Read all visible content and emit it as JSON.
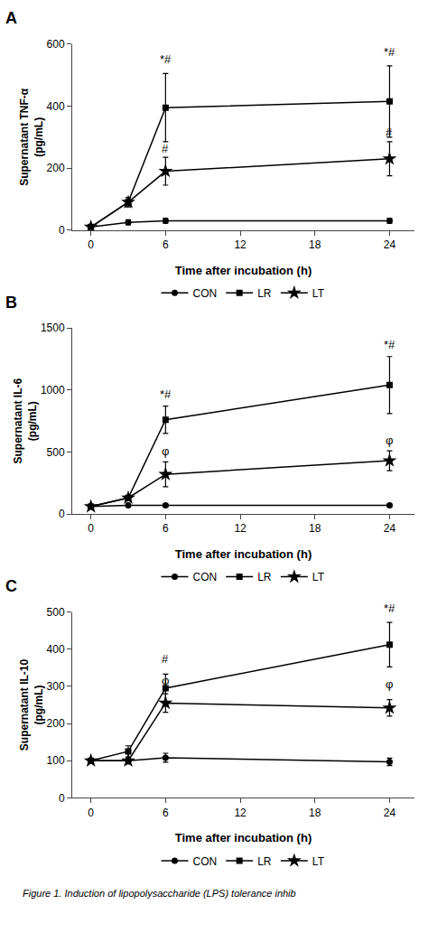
{
  "chart_data": [
    {
      "type": "line",
      "title": "A",
      "x": [
        0,
        3,
        6,
        24
      ],
      "series": [
        {
          "name": "CON",
          "color": "#000000",
          "marker": "circle",
          "values": [
            10,
            25,
            30,
            30
          ],
          "yerr": [
            5,
            8,
            8,
            8
          ]
        },
        {
          "name": "LR",
          "color": "#000000",
          "marker": "square",
          "values": [
            10,
            90,
            395,
            415
          ],
          "yerr": [
            5,
            15,
            110,
            115
          ]
        },
        {
          "name": "LT",
          "color": "#000000",
          "marker": "star",
          "values": [
            10,
            90,
            190,
            230
          ],
          "yerr": [
            5,
            15,
            45,
            55
          ]
        }
      ],
      "xlabel": "Time after incubation (h)",
      "ylabel": "Supernatant TNF-α\n(pg/mL)",
      "xlim": [
        -1.5,
        26
      ],
      "xticks": [
        0,
        6,
        12,
        18,
        24
      ],
      "ylim": [
        0,
        600
      ],
      "yticks": [
        0,
        200,
        400,
        600
      ],
      "annotations": [
        {
          "x": 6,
          "y": 525,
          "text": "*#"
        },
        {
          "x": 6,
          "y": 235,
          "text": "#"
        },
        {
          "x": 24,
          "y": 548,
          "text": "*#"
        },
        {
          "x": 24,
          "y": 287,
          "text": "#"
        }
      ],
      "grid": false,
      "legend": "bottom"
    },
    {
      "type": "line",
      "title": "B",
      "x": [
        0,
        3,
        6,
        24
      ],
      "series": [
        {
          "name": "CON",
          "color": "#000000",
          "marker": "circle",
          "values": [
            60,
            70,
            70,
            70
          ],
          "yerr": [
            10,
            10,
            10,
            10
          ]
        },
        {
          "name": "LR",
          "color": "#000000",
          "marker": "square",
          "values": [
            60,
            130,
            760,
            1040
          ],
          "yerr": [
            10,
            20,
            110,
            230
          ]
        },
        {
          "name": "LT",
          "color": "#000000",
          "marker": "star",
          "values": [
            60,
            130,
            320,
            430
          ],
          "yerr": [
            10,
            20,
            100,
            80
          ]
        }
      ],
      "xlabel": "Time after incubation (h)",
      "ylabel": "Supernatant IL-6\n(pg/mL)",
      "xlim": [
        -1.5,
        26
      ],
      "xticks": [
        0,
        6,
        12,
        18,
        24
      ],
      "ylim": [
        0,
        1500
      ],
      "yticks": [
        0,
        500,
        1000,
        1500
      ],
      "annotations": [
        {
          "x": 6,
          "y": 895,
          "text": "*#"
        },
        {
          "x": 6,
          "y": 438,
          "text": "φ"
        },
        {
          "x": 24,
          "y": 1295,
          "text": "*#"
        },
        {
          "x": 24,
          "y": 528,
          "text": "φ"
        }
      ],
      "grid": false,
      "legend": "bottom"
    },
    {
      "type": "line",
      "title": "C",
      "x": [
        0,
        3,
        6,
        24
      ],
      "series": [
        {
          "name": "CON",
          "color": "#000000",
          "marker": "circle",
          "values": [
            100,
            100,
            108,
            97
          ],
          "yerr": [
            5,
            8,
            12,
            10
          ]
        },
        {
          "name": "LR",
          "color": "#000000",
          "marker": "square",
          "values": [
            100,
            125,
            295,
            412
          ],
          "yerr": [
            5,
            15,
            38,
            60
          ]
        },
        {
          "name": "LT",
          "color": "#000000",
          "marker": "star",
          "values": [
            100,
            100,
            255,
            242
          ],
          "yerr": [
            5,
            8,
            25,
            22
          ]
        }
      ],
      "xlabel": "Time after incubation (h)",
      "ylabel": "Supernatant IL-10\n(pg/mL)",
      "xlim": [
        -1.5,
        26
      ],
      "xticks": [
        0,
        6,
        12,
        18,
        24
      ],
      "ylim": [
        0,
        500
      ],
      "yticks": [
        0,
        100,
        200,
        300,
        400,
        500
      ],
      "annotations": [
        {
          "x": 6,
          "y": 350,
          "text": "#"
        },
        {
          "x": 6,
          "y": 292,
          "text": "φ"
        },
        {
          "x": 24,
          "y": 487,
          "text": "*#"
        },
        {
          "x": 24,
          "y": 282,
          "text": "φ"
        }
      ],
      "grid": false,
      "legend": "bottom"
    }
  ],
  "caption": "Figure 1. Induction of lipopolysaccharide (LPS) tolerance inhib"
}
